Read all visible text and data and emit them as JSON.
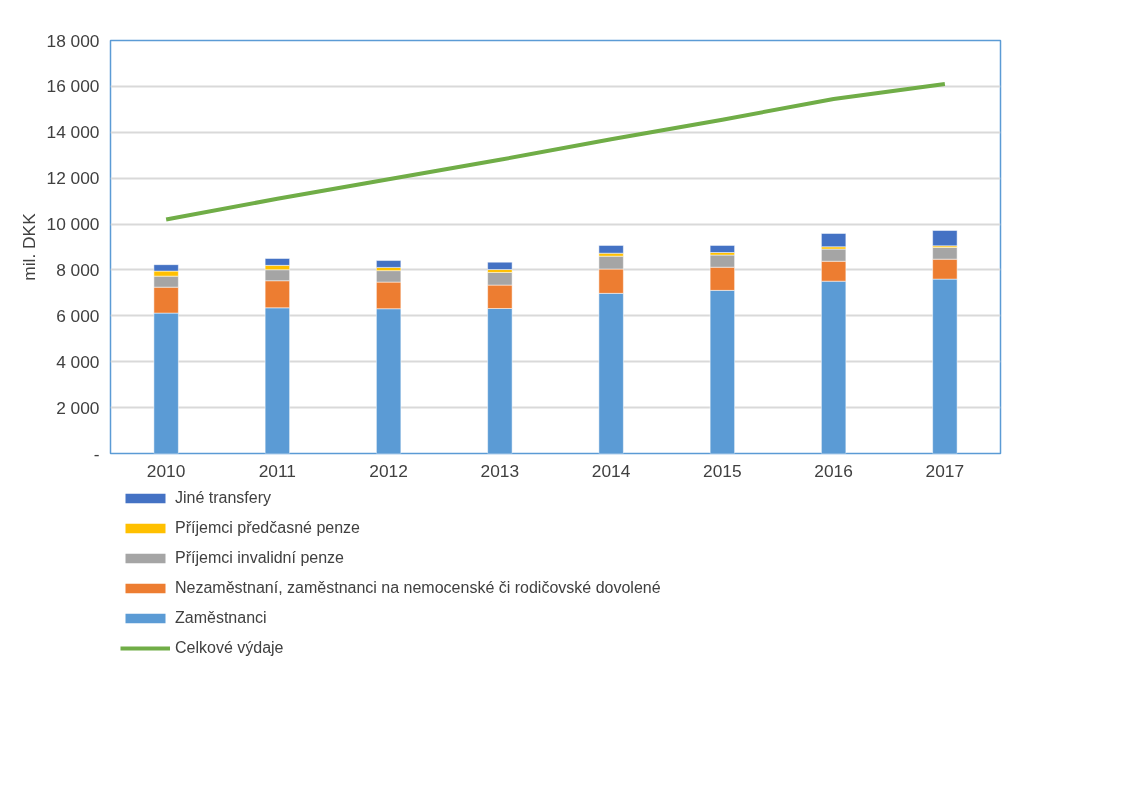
{
  "chart_data": {
    "type": "bar",
    "stacked": true,
    "ylabel": "mil. DKK",
    "categories": [
      "2010",
      "2011",
      "2012",
      "2013",
      "2014",
      "2015",
      "2016",
      "2017"
    ],
    "series": [
      {
        "name": "Zaměstnanci",
        "color": "#5b9bd5",
        "values": [
          6120,
          6350,
          6310,
          6320,
          6980,
          7110,
          7510,
          7600
        ]
      },
      {
        "name": "Nezaměstnaní, zaměstnanci na nemocenské či rodičovské dovolené",
        "color": "#ed7d31",
        "values": [
          1130,
          1180,
          1160,
          1020,
          1060,
          1010,
          870,
          870
        ]
      },
      {
        "name": "Příjemci invalidní penze",
        "color": "#a5a5a5",
        "values": [
          480,
          480,
          500,
          550,
          560,
          530,
          530,
          510
        ]
      },
      {
        "name": "Příjemci předčasné penze",
        "color": "#ffc000",
        "values": [
          220,
          190,
          140,
          130,
          130,
          110,
          100,
          70
        ]
      },
      {
        "name": "Jiné transfery",
        "color": "#4472c4",
        "values": [
          280,
          300,
          300,
          320,
          340,
          310,
          580,
          670
        ]
      },
      {
        "name": "Celkové výdaje",
        "type": "line",
        "color": "#70ad47",
        "values": [
          10200,
          11100,
          11950,
          12800,
          13700,
          14550,
          15450,
          16100
        ]
      }
    ],
    "ylim": [
      0,
      18000
    ],
    "yticks": [
      {
        "value": 0,
        "label": "-"
      },
      {
        "value": 2000,
        "label": "2 000"
      },
      {
        "value": 4000,
        "label": "4 000"
      },
      {
        "value": 6000,
        "label": "6 000"
      },
      {
        "value": 8000,
        "label": "8 000"
      },
      {
        "value": 10000,
        "label": "10 000"
      },
      {
        "value": 12000,
        "label": "12 000"
      },
      {
        "value": 14000,
        "label": "14 000"
      },
      {
        "value": 16000,
        "label": "16 000"
      },
      {
        "value": 18000,
        "label": "18 000"
      }
    ],
    "grid": "y",
    "legend": "bottom",
    "line_style": "solid"
  }
}
